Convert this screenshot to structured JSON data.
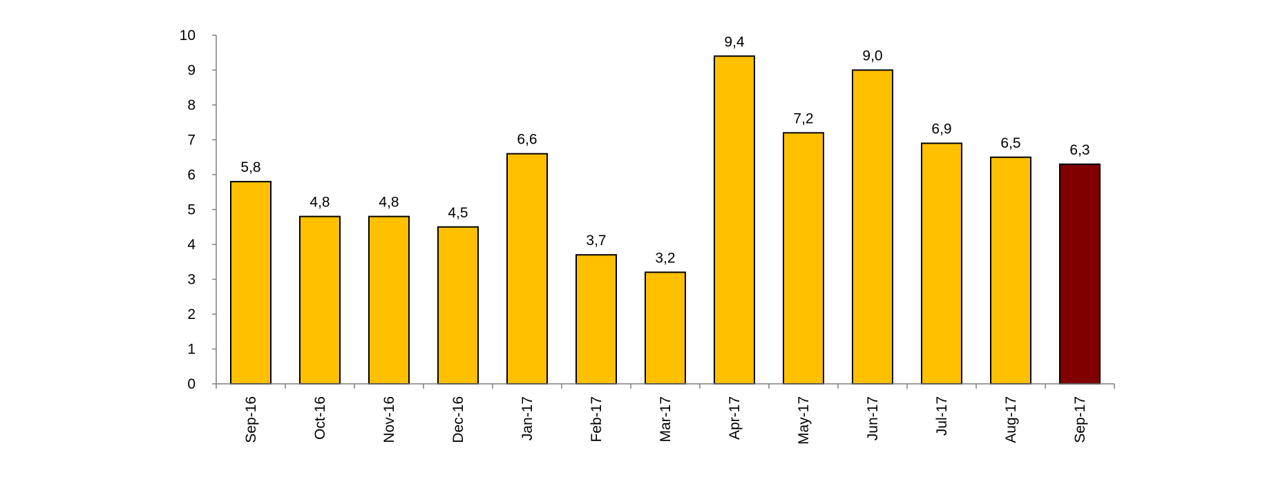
{
  "chart_data": {
    "type": "bar",
    "categories": [
      "Sep-16",
      "Oct-16",
      "Nov-16",
      "Dec-16",
      "Jan-17",
      "Feb-17",
      "Mar-17",
      "Apr-17",
      "May-17",
      "Jun-17",
      "Jul-17",
      "Aug-17",
      "Sep-17"
    ],
    "values": [
      5.8,
      4.8,
      4.8,
      4.5,
      6.6,
      3.7,
      3.2,
      9.4,
      7.2,
      9.0,
      6.9,
      6.5,
      6.3
    ],
    "value_labels": [
      "5,8",
      "4,8",
      "4,8",
      "4,5",
      "6,6",
      "3,7",
      "3,2",
      "9,4",
      "7,2",
      "9,0",
      "6,9",
      "6,5",
      "6,3"
    ],
    "y_ticks": [
      "0",
      "1",
      "2",
      "3",
      "4",
      "5",
      "6",
      "7",
      "8",
      "9",
      "10"
    ],
    "ylim": [
      0,
      10
    ],
    "grid": false,
    "legend": "none",
    "colors": {
      "bar": "#FFC000",
      "highlight_bar": "#800000",
      "highlight_index": 12,
      "outline": "#000000",
      "axis": "#7f7f7f"
    }
  }
}
